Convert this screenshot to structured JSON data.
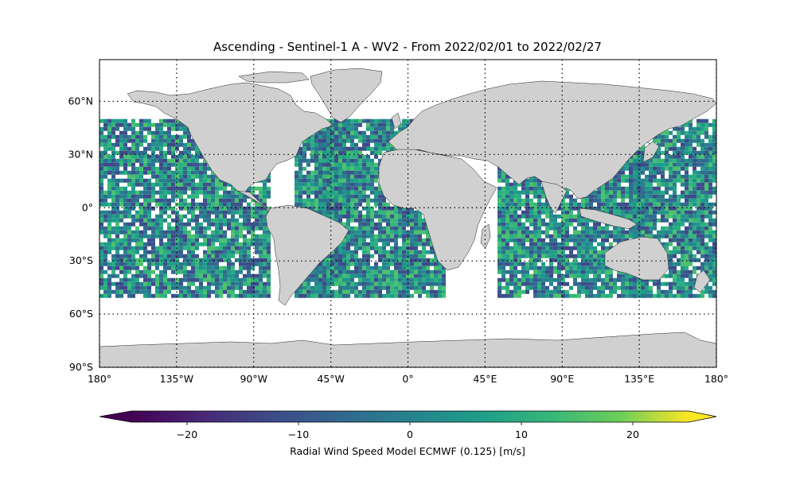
{
  "title": "Ascending - Sentinel-1 A - WV2 - From 2022/02/01 to 2022/02/27",
  "map": {
    "projection": "PlateCarree",
    "lon_range": [
      -180,
      180
    ],
    "lat_range": [
      -90,
      90
    ],
    "land_color": "#d0d0d0",
    "coastline_color": "#222222",
    "gridlines": "dotted",
    "lon_ticks": [
      {
        "value": -180,
        "label": "180°"
      },
      {
        "value": -135,
        "label": "135°W"
      },
      {
        "value": -90,
        "label": "90°W"
      },
      {
        "value": -45,
        "label": "45°W"
      },
      {
        "value": 0,
        "label": "0°"
      },
      {
        "value": 45,
        "label": "45°E"
      },
      {
        "value": 90,
        "label": "90°E"
      },
      {
        "value": 135,
        "label": "135°E"
      },
      {
        "value": 180,
        "label": "180°"
      }
    ],
    "lat_ticks": [
      {
        "value": 60,
        "label": "60°N"
      },
      {
        "value": 30,
        "label": "30°N"
      },
      {
        "value": 0,
        "label": "0°"
      },
      {
        "value": -30,
        "label": "30°S"
      },
      {
        "value": -60,
        "label": "60°S"
      },
      {
        "value": -90,
        "label": "90°S"
      }
    ],
    "data_lat_range": [
      -50,
      50
    ],
    "colormap": "viridis"
  },
  "colorbar": {
    "label": "Radial Wind Speed Model ECMWF (0.125) [m/s]",
    "range": [
      -27.5,
      27.5
    ],
    "extend": "both",
    "ticks": [
      {
        "value": -20,
        "label": "−20"
      },
      {
        "value": -10,
        "label": "−10"
      },
      {
        "value": 0,
        "label": "0"
      },
      {
        "value": 10,
        "label": "10"
      },
      {
        "value": 20,
        "label": "20"
      }
    ]
  }
}
